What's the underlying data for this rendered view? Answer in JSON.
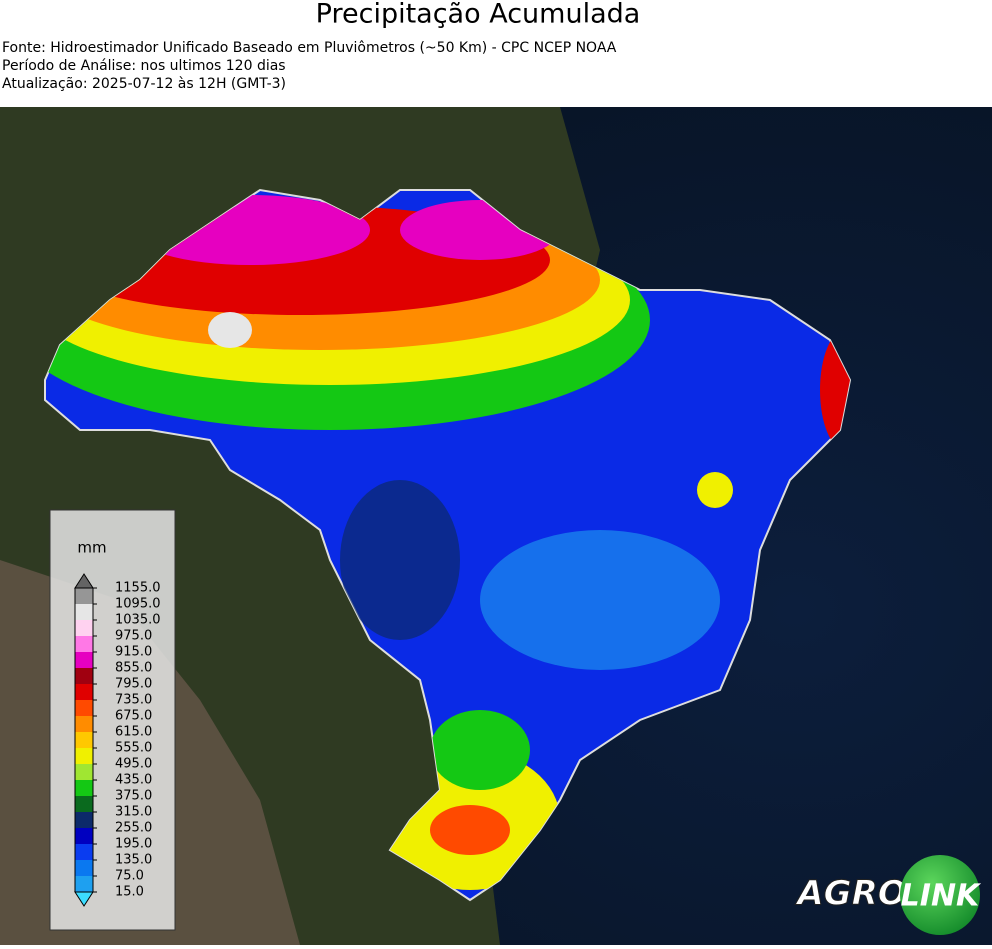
{
  "header": {
    "title": "Precipitação Acumulada",
    "lines": [
      "Fonte: Hidroestimador Unificado Baseado em Pluviômetros (~50 Km) - CPC NCEP NOAA",
      "Período de Análise: nos ultimos 120 dias",
      "Atualização: 2025-07-12 às 12H (GMT-3)"
    ]
  },
  "colorbar": {
    "unit": "mm",
    "ticks": [
      {
        "value": 15,
        "label": "15.0"
      },
      {
        "value": 75,
        "label": "75.0"
      },
      {
        "value": 135,
        "label": "135.0"
      },
      {
        "value": 195,
        "label": "195.0"
      },
      {
        "value": 255,
        "label": "255.0"
      },
      {
        "value": 315,
        "label": "315.0"
      },
      {
        "value": 375,
        "label": "375.0"
      },
      {
        "value": 435,
        "label": "435.0"
      },
      {
        "value": 495,
        "label": "495.0"
      },
      {
        "value": 555,
        "label": "555.0"
      },
      {
        "value": 615,
        "label": "615.0"
      },
      {
        "value": 675,
        "label": "675.0"
      },
      {
        "value": 735,
        "label": "735.0"
      },
      {
        "value": 795,
        "label": "795.0"
      },
      {
        "value": 855,
        "label": "855.0"
      },
      {
        "value": 915,
        "label": "915.0"
      },
      {
        "value": 975,
        "label": "975.0"
      },
      {
        "value": 1035,
        "label": "1035.0"
      },
      {
        "value": 1095,
        "label": "1095.0"
      },
      {
        "value": 1155,
        "label": "1155.0"
      }
    ],
    "colors": [
      "#1ea0f0",
      "#0a78f0",
      "#0a3cf0",
      "#0000c0",
      "#0c2a6a",
      "#0a6a1e",
      "#14c814",
      "#a0e632",
      "#f0f000",
      "#ffc800",
      "#ff8c00",
      "#ff4a00",
      "#e00000",
      "#a00010",
      "#e600c0",
      "#ff78e6",
      "#ffd2f0",
      "#e6e6e6",
      "#969696"
    ],
    "under_color": "#3cdcff",
    "over_color": "#646464"
  },
  "logo": {
    "left": "AGRO",
    "right": "LINK"
  }
}
